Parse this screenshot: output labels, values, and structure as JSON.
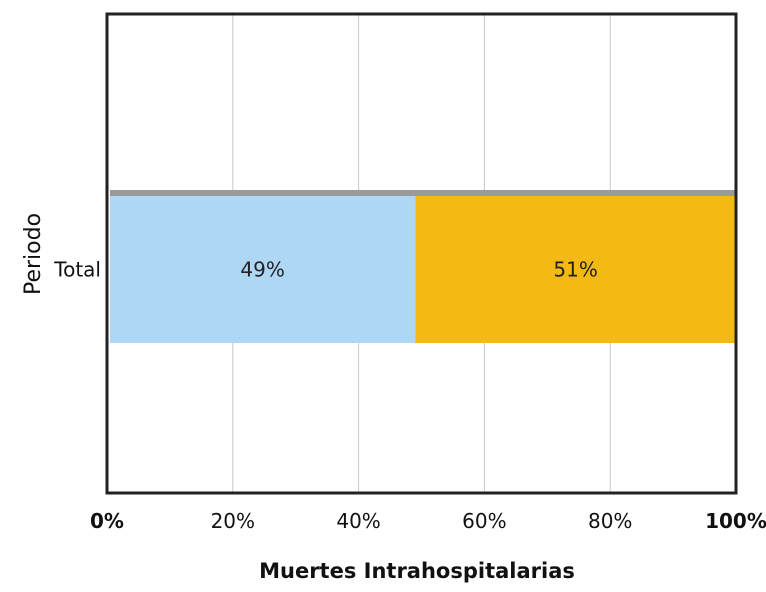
{
  "chart_data": {
    "type": "bar",
    "orientation": "horizontal",
    "stacked": true,
    "percent": true,
    "categories": [
      "Total"
    ],
    "series": [
      {
        "values": [
          49
        ],
        "color": "#aed6f5",
        "label": "49%"
      },
      {
        "values": [
          51
        ],
        "color": "#f4b912",
        "label": "51%"
      }
    ],
    "xlabel": "Muertes Intrahospitalarias",
    "ylabel": "Periodo",
    "xlim": [
      0,
      100
    ],
    "xticks": [
      "0%",
      "20%",
      "40%",
      "60%",
      "80%",
      "100%"
    ],
    "grid": true,
    "legend": "none"
  }
}
